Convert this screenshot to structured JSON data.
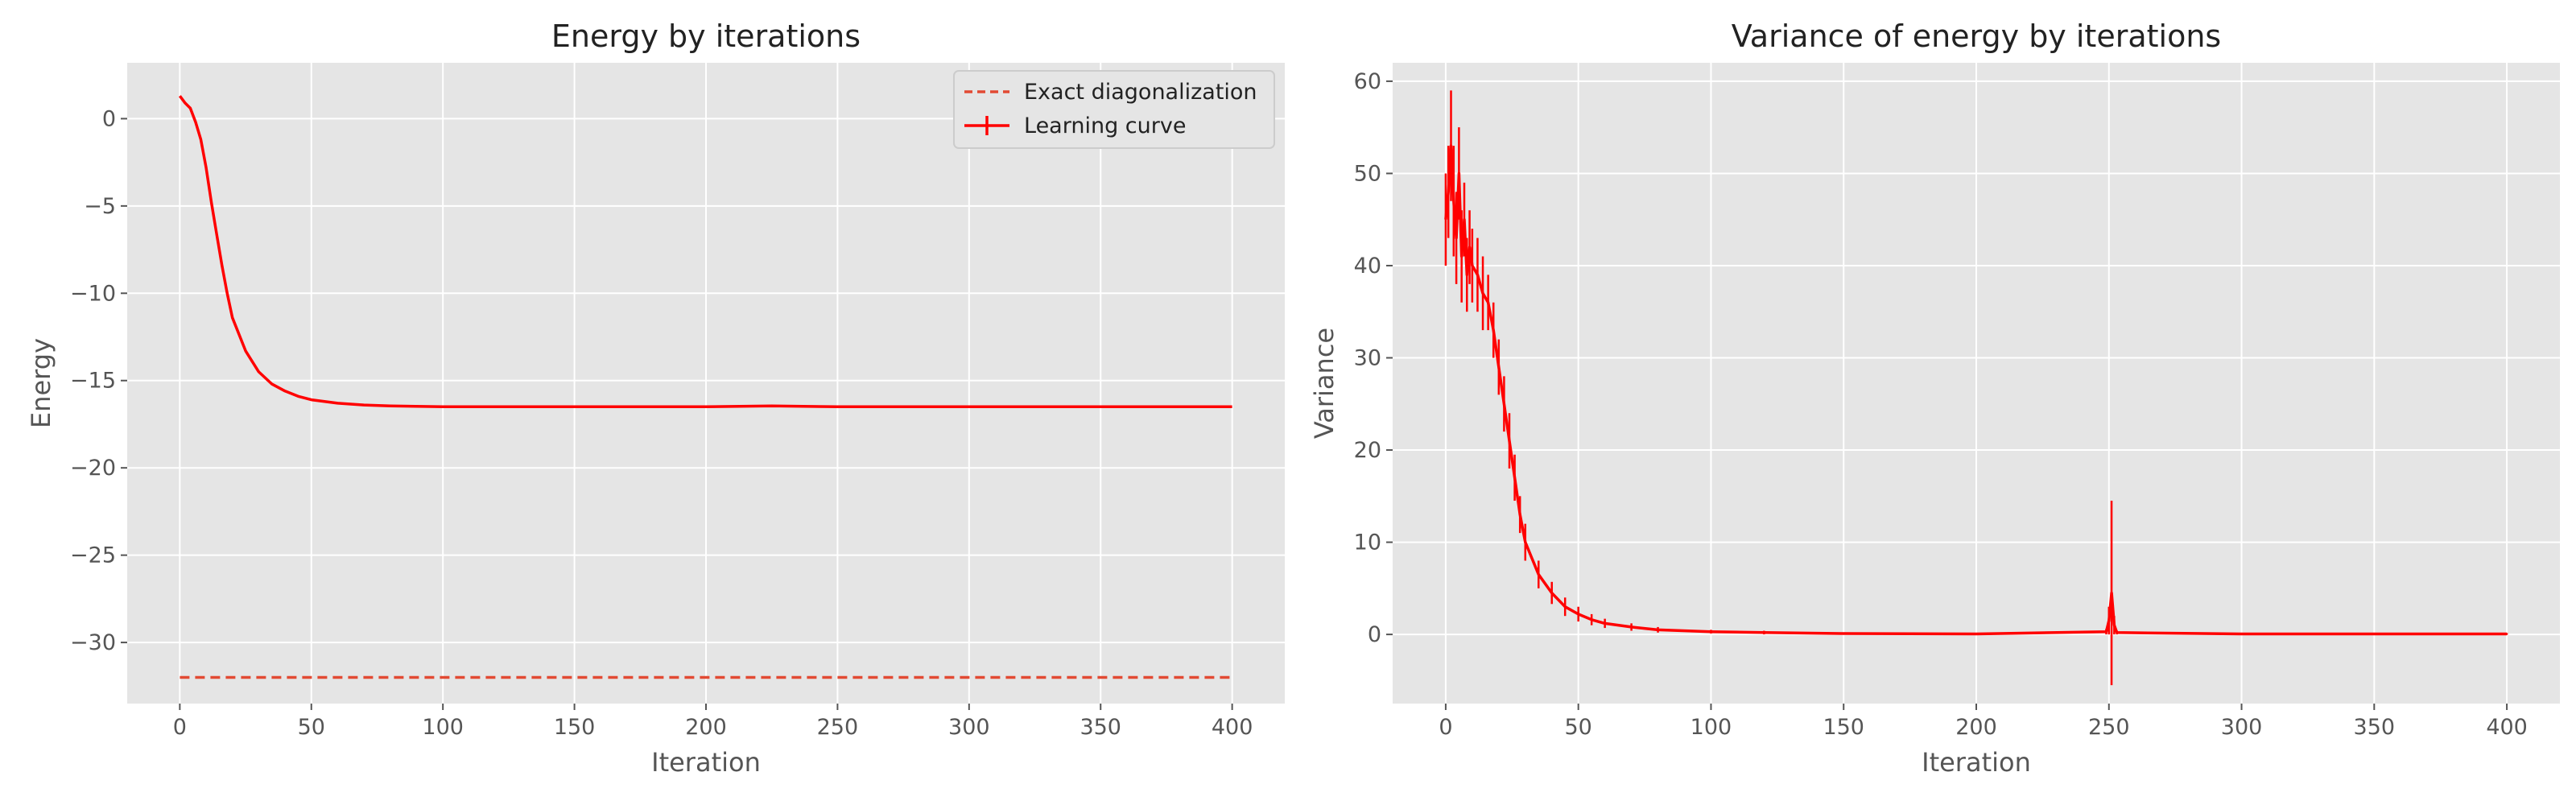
{
  "colors": {
    "axes_bg": "#e5e5e5",
    "grid": "#ffffff",
    "learning_curve": "#ff0000",
    "exact_line": "#e24a33",
    "text": "#555555"
  },
  "chart_data": [
    {
      "type": "line",
      "title": "Energy by iterations",
      "xlabel": "Iteration",
      "ylabel": "Energy",
      "xlim": [
        -20,
        420
      ],
      "ylim": [
        -33.5,
        3.2
      ],
      "xticks": [
        0,
        50,
        100,
        150,
        200,
        250,
        300,
        350,
        400
      ],
      "yticks": [
        0,
        -5,
        -10,
        -15,
        -20,
        -25,
        -30
      ],
      "ytick_labels": [
        "0",
        "−5",
        "−10",
        "−15",
        "−20",
        "−25",
        "−30"
      ],
      "grid": true,
      "legend_position": "top-right",
      "series": [
        {
          "name": "Exact diagonalization",
          "style": "dashed",
          "x": [
            0,
            400
          ],
          "y": [
            -32.0,
            -32.0
          ]
        },
        {
          "name": "Learning curve",
          "style": "solid-errorbar",
          "x": [
            0,
            2,
            4,
            6,
            8,
            10,
            12,
            14,
            16,
            18,
            20,
            25,
            30,
            35,
            40,
            45,
            50,
            60,
            70,
            80,
            100,
            120,
            150,
            200,
            225,
            250,
            300,
            350,
            400
          ],
          "y": [
            1.3,
            0.9,
            0.6,
            -0.2,
            -1.2,
            -2.8,
            -4.8,
            -6.6,
            -8.4,
            -10.0,
            -11.4,
            -13.3,
            -14.5,
            -15.2,
            -15.6,
            -15.9,
            -16.1,
            -16.3,
            -16.4,
            -16.45,
            -16.5,
            -16.5,
            -16.5,
            -16.5,
            -16.45,
            -16.5,
            -16.5,
            -16.5,
            -16.5
          ]
        }
      ]
    },
    {
      "type": "line",
      "title": "Variance of energy by iterations",
      "xlabel": "Iteration",
      "ylabel": "Variance",
      "xlim": [
        -20,
        420
      ],
      "ylim": [
        -7.5,
        62
      ],
      "xticks": [
        0,
        50,
        100,
        150,
        200,
        250,
        300,
        350,
        400
      ],
      "yticks": [
        0,
        10,
        20,
        30,
        40,
        50,
        60
      ],
      "ytick_labels": [
        "0",
        "10",
        "20",
        "30",
        "40",
        "50",
        "60"
      ],
      "grid": true,
      "series": [
        {
          "style": "solid-errorbar",
          "x": [
            0,
            1,
            2,
            3,
            4,
            5,
            6,
            7,
            8,
            9,
            10,
            12,
            14,
            16,
            18,
            20,
            22,
            24,
            26,
            28,
            30,
            35,
            40,
            45,
            50,
            55,
            60,
            70,
            80,
            100,
            120,
            150,
            200,
            249,
            250,
            251,
            252,
            253,
            300,
            350,
            400
          ],
          "y": [
            45,
            48,
            53,
            47,
            43,
            50,
            41,
            45,
            39,
            42,
            40,
            39,
            37,
            36,
            33,
            29,
            25,
            21,
            17,
            13,
            10,
            6.5,
            4.5,
            3.0,
            2.2,
            1.6,
            1.2,
            0.8,
            0.5,
            0.3,
            0.2,
            0.1,
            0.05,
            0.3,
            1.5,
            4.5,
            1.0,
            0.2,
            0.05,
            0.05,
            0.05
          ],
          "err": [
            5,
            5,
            6,
            6,
            5,
            5,
            5,
            4,
            4,
            4,
            4,
            4,
            4,
            3,
            3,
            3,
            3,
            3,
            2.5,
            2,
            2,
            1.5,
            1.2,
            1,
            0.8,
            0.6,
            0.5,
            0.4,
            0.3,
            0.2,
            0.2,
            0.1,
            0.1,
            0.3,
            1.5,
            10,
            1,
            0.2,
            0.1,
            0.1,
            0.1
          ]
        }
      ]
    }
  ]
}
